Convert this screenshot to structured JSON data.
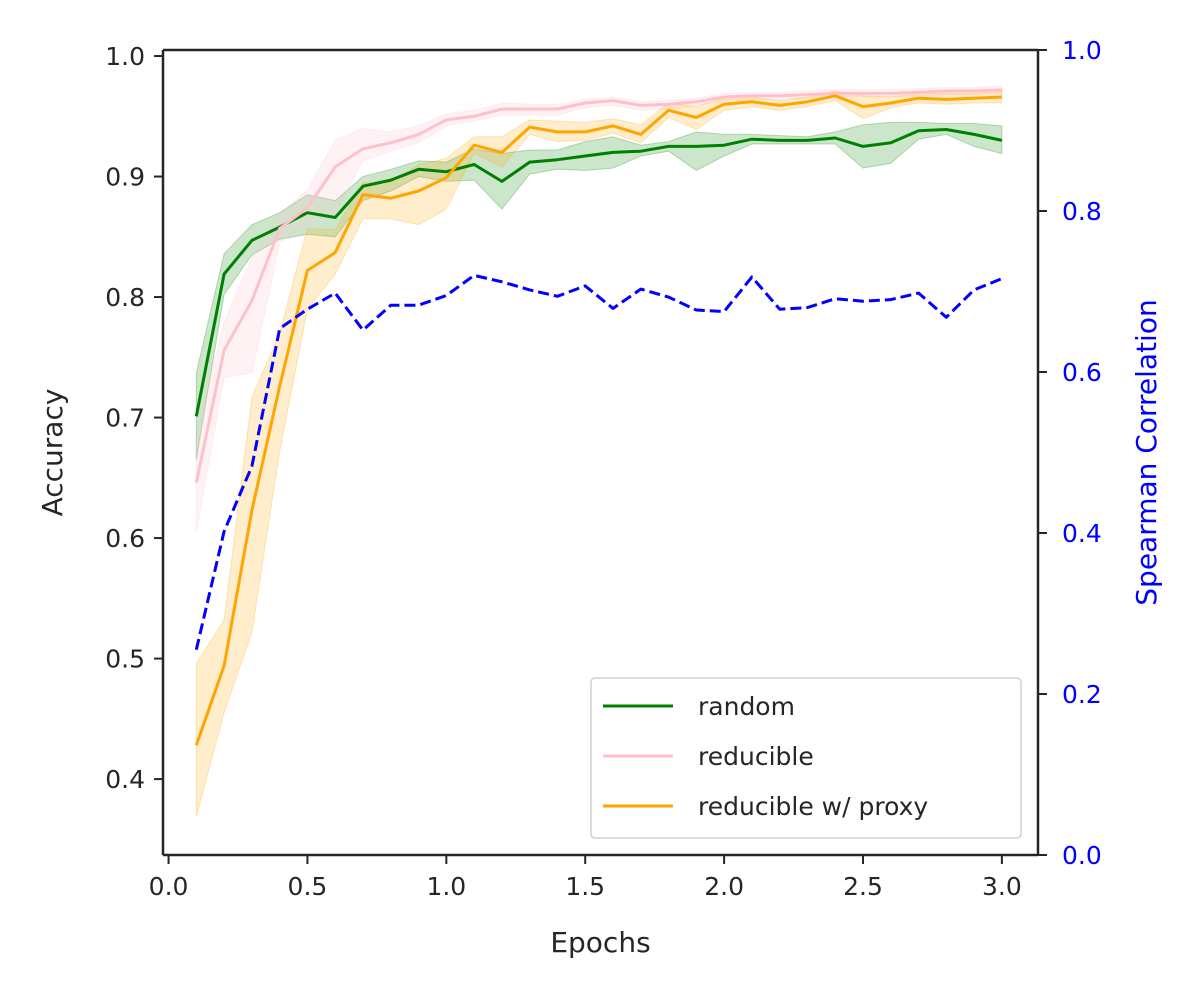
{
  "chart_data": {
    "type": "line",
    "title": "",
    "xlabel": "Epochs",
    "ylabel": "Accuracy",
    "y2label": "Spearman Correlation",
    "xlim": [
      -0.02,
      3.13
    ],
    "ylim": [
      0.337,
      1.005
    ],
    "y2lim": [
      0.0,
      1.0
    ],
    "xticks": [
      "0.0",
      "0.5",
      "1.0",
      "1.5",
      "2.0",
      "2.5",
      "3.0"
    ],
    "yticks": [
      "0.4",
      "0.5",
      "0.6",
      "0.7",
      "0.8",
      "0.9",
      "1.0"
    ],
    "y2ticks": [
      "0.0",
      "0.2",
      "0.4",
      "0.6",
      "0.8",
      "1.0"
    ],
    "legend_position": "lower-right",
    "x": [
      0.1,
      0.2,
      0.3,
      0.4,
      0.5,
      0.6,
      0.7,
      0.8,
      0.9,
      1.0,
      1.1,
      1.2,
      1.3,
      1.4,
      1.5,
      1.6,
      1.7,
      1.8,
      1.9,
      2.0,
      2.1,
      2.2,
      2.3,
      2.4,
      2.5,
      2.6,
      2.7,
      2.8,
      2.9,
      3.0
    ],
    "series": [
      {
        "name": "random",
        "color": "#008000",
        "axis": "left",
        "values": [
          0.701,
          0.819,
          0.847,
          0.858,
          0.87,
          0.866,
          0.892,
          0.897,
          0.906,
          0.904,
          0.91,
          0.896,
          0.912,
          0.914,
          0.917,
          0.92,
          0.921,
          0.925,
          0.925,
          0.926,
          0.931,
          0.93,
          0.93,
          0.932,
          0.925,
          0.928,
          0.938,
          0.939,
          0.935,
          0.93
        ],
        "lower": [
          0.665,
          0.802,
          0.835,
          0.848,
          0.852,
          0.85,
          0.88,
          0.888,
          0.9,
          0.896,
          0.897,
          0.873,
          0.902,
          0.906,
          0.905,
          0.907,
          0.917,
          0.921,
          0.905,
          0.917,
          0.927,
          0.927,
          0.927,
          0.927,
          0.907,
          0.911,
          0.931,
          0.935,
          0.925,
          0.919
        ],
        "upper": [
          0.737,
          0.836,
          0.86,
          0.87,
          0.885,
          0.88,
          0.9,
          0.906,
          0.913,
          0.912,
          0.923,
          0.919,
          0.922,
          0.922,
          0.929,
          0.933,
          0.926,
          0.929,
          0.937,
          0.935,
          0.935,
          0.934,
          0.933,
          0.937,
          0.943,
          0.945,
          0.945,
          0.944,
          0.944,
          0.942
        ]
      },
      {
        "name": "reducible",
        "color": "#ffc0cb",
        "axis": "left",
        "values": [
          0.646,
          0.756,
          0.797,
          0.857,
          0.874,
          0.908,
          0.923,
          0.928,
          0.935,
          0.947,
          0.95,
          0.956,
          0.956,
          0.956,
          0.961,
          0.963,
          0.959,
          0.96,
          0.962,
          0.966,
          0.967,
          0.967,
          0.968,
          0.969,
          0.969,
          0.969,
          0.97,
          0.971,
          0.971,
          0.972
        ],
        "lower": [
          0.605,
          0.733,
          0.737,
          0.845,
          0.86,
          0.87,
          0.913,
          0.921,
          0.928,
          0.942,
          0.946,
          0.951,
          0.951,
          0.951,
          0.957,
          0.959,
          0.955,
          0.956,
          0.959,
          0.963,
          0.964,
          0.964,
          0.965,
          0.966,
          0.966,
          0.966,
          0.967,
          0.968,
          0.968,
          0.969
        ],
        "upper": [
          0.687,
          0.779,
          0.833,
          0.869,
          0.889,
          0.93,
          0.94,
          0.937,
          0.942,
          0.952,
          0.955,
          0.961,
          0.96,
          0.96,
          0.964,
          0.966,
          0.962,
          0.963,
          0.965,
          0.969,
          0.97,
          0.97,
          0.971,
          0.972,
          0.972,
          0.972,
          0.973,
          0.974,
          0.974,
          0.975
        ]
      },
      {
        "name": "reducible w/ proxy",
        "color": "#ffa500",
        "axis": "left",
        "values": [
          0.428,
          0.494,
          0.623,
          0.726,
          0.822,
          0.837,
          0.885,
          0.882,
          0.888,
          0.899,
          0.926,
          0.92,
          0.941,
          0.937,
          0.937,
          0.942,
          0.935,
          0.955,
          0.949,
          0.96,
          0.962,
          0.959,
          0.962,
          0.967,
          0.958,
          0.961,
          0.965,
          0.964,
          0.965,
          0.966
        ],
        "lower": [
          0.369,
          0.455,
          0.522,
          0.672,
          0.79,
          0.819,
          0.865,
          0.865,
          0.86,
          0.873,
          0.919,
          0.908,
          0.935,
          0.929,
          0.93,
          0.936,
          0.928,
          0.949,
          0.939,
          0.955,
          0.958,
          0.955,
          0.958,
          0.963,
          0.948,
          0.957,
          0.961,
          0.96,
          0.961,
          0.961
        ],
        "upper": [
          0.496,
          0.532,
          0.717,
          0.77,
          0.857,
          0.856,
          0.895,
          0.895,
          0.91,
          0.915,
          0.933,
          0.933,
          0.947,
          0.946,
          0.945,
          0.948,
          0.943,
          0.961,
          0.958,
          0.965,
          0.966,
          0.963,
          0.966,
          0.971,
          0.967,
          0.966,
          0.969,
          0.969,
          0.969,
          0.971
        ]
      },
      {
        "name": "Spearman Correlation",
        "color": "#0000ff",
        "axis": "right",
        "dashed": true,
        "values": [
          0.255,
          0.402,
          0.483,
          0.654,
          0.678,
          0.698,
          0.652,
          0.683,
          0.683,
          0.695,
          0.72,
          0.712,
          0.702,
          0.694,
          0.707,
          0.679,
          0.703,
          0.693,
          0.677,
          0.675,
          0.718,
          0.678,
          0.68,
          0.691,
          0.688,
          0.69,
          0.698,
          0.668,
          0.702,
          0.716
        ]
      }
    ]
  }
}
